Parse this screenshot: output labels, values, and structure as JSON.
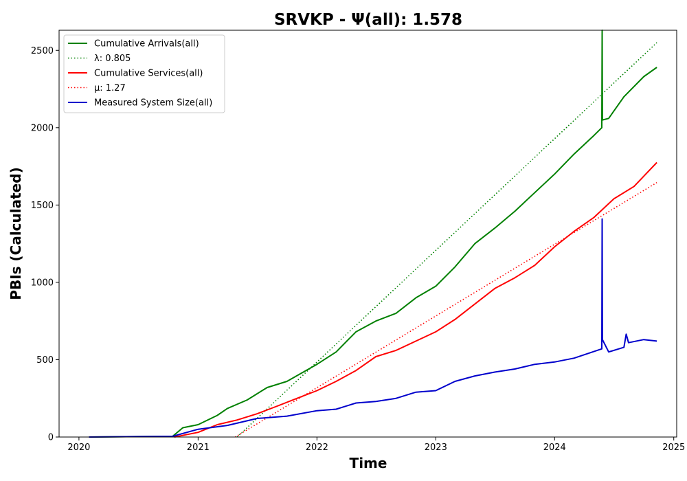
{
  "chart_data": {
    "type": "line",
    "title": "SRVKP -  Ψ(all): 1.578",
    "xlabel": "Time",
    "ylabel": "PBIs (Calculated)",
    "xlim": [
      "2019-11-01",
      "2025-01-10"
    ],
    "ylim": [
      0,
      2630
    ],
    "x_ticks": [
      "2020",
      "2021",
      "2022",
      "2023",
      "2024",
      "2025"
    ],
    "y_ticks": [
      0,
      500,
      1000,
      1500,
      2000,
      2500
    ],
    "grid": false,
    "legend_position": "top-left",
    "legend": [
      {
        "label": "Cumulative Arrivals(all)",
        "color": "#008000",
        "style": "solid"
      },
      {
        "label": "λ: 0.805",
        "color": "#008000",
        "style": "dotted"
      },
      {
        "label": "Cumulative Services(all)",
        "color": "#ff0000",
        "style": "solid"
      },
      {
        "label": "μ: 1.27",
        "color": "#ff0000",
        "style": "dotted"
      },
      {
        "label": "Measured System Size(all)",
        "color": "#0000cc",
        "style": "solid"
      }
    ],
    "series": [
      {
        "name": "Cumulative Arrivals(all)",
        "color": "#008000",
        "style": "solid",
        "points": [
          [
            "2020-02-01",
            0
          ],
          [
            "2020-10-15",
            5
          ],
          [
            "2020-11-15",
            60
          ],
          [
            "2021-01-01",
            80
          ],
          [
            "2021-03-01",
            140
          ],
          [
            "2021-04-01",
            185
          ],
          [
            "2021-06-01",
            240
          ],
          [
            "2021-08-01",
            320
          ],
          [
            "2021-10-01",
            360
          ],
          [
            "2022-01-01",
            470
          ],
          [
            "2022-03-01",
            550
          ],
          [
            "2022-05-01",
            680
          ],
          [
            "2022-07-01",
            750
          ],
          [
            "2022-09-01",
            800
          ],
          [
            "2022-11-01",
            900
          ],
          [
            "2023-01-01",
            975
          ],
          [
            "2023-03-01",
            1100
          ],
          [
            "2023-05-01",
            1250
          ],
          [
            "2023-07-01",
            1350
          ],
          [
            "2023-09-01",
            1460
          ],
          [
            "2023-11-01",
            1580
          ],
          [
            "2024-01-01",
            1700
          ],
          [
            "2024-03-01",
            1830
          ],
          [
            "2024-05-01",
            1950
          ],
          [
            "2024-05-25",
            2000
          ],
          [
            "2024-05-26",
            2630
          ],
          [
            "2024-05-27",
            2050
          ],
          [
            "2024-06-15",
            2060
          ],
          [
            "2024-08-01",
            2200
          ],
          [
            "2024-10-01",
            2330
          ],
          [
            "2024-11-10",
            2390
          ]
        ]
      },
      {
        "name": "λ: 0.805",
        "color": "#008000",
        "style": "dotted",
        "points": [
          [
            "2021-05-01",
            0
          ],
          [
            "2024-11-10",
            2550
          ]
        ]
      },
      {
        "name": "Cumulative Services(all)",
        "color": "#ff0000",
        "style": "solid",
        "points": [
          [
            "2020-10-20",
            0
          ],
          [
            "2021-01-01",
            30
          ],
          [
            "2021-03-01",
            80
          ],
          [
            "2021-05-01",
            110
          ],
          [
            "2021-07-01",
            150
          ],
          [
            "2021-09-01",
            200
          ],
          [
            "2021-11-01",
            250
          ],
          [
            "2022-01-01",
            300
          ],
          [
            "2022-03-01",
            360
          ],
          [
            "2022-05-01",
            430
          ],
          [
            "2022-07-01",
            520
          ],
          [
            "2022-09-01",
            560
          ],
          [
            "2022-11-01",
            620
          ],
          [
            "2023-01-01",
            680
          ],
          [
            "2023-03-01",
            760
          ],
          [
            "2023-05-01",
            860
          ],
          [
            "2023-07-01",
            960
          ],
          [
            "2023-09-01",
            1030
          ],
          [
            "2023-11-01",
            1110
          ],
          [
            "2024-01-01",
            1230
          ],
          [
            "2024-03-01",
            1330
          ],
          [
            "2024-05-01",
            1420
          ],
          [
            "2024-07-01",
            1540
          ],
          [
            "2024-09-01",
            1620
          ],
          [
            "2024-11-10",
            1775
          ]
        ]
      },
      {
        "name": "μ: 1.27",
        "color": "#ff0000",
        "style": "dotted",
        "points": [
          [
            "2021-04-25",
            0
          ],
          [
            "2024-11-10",
            1645
          ]
        ]
      },
      {
        "name": "Measured System Size(all)",
        "color": "#0000cc",
        "style": "solid",
        "points": [
          [
            "2020-02-01",
            0
          ],
          [
            "2020-10-15",
            5
          ],
          [
            "2021-01-01",
            50
          ],
          [
            "2021-04-01",
            75
          ],
          [
            "2021-07-01",
            120
          ],
          [
            "2021-10-01",
            135
          ],
          [
            "2022-01-01",
            170
          ],
          [
            "2022-03-01",
            180
          ],
          [
            "2022-05-01",
            220
          ],
          [
            "2022-07-01",
            230
          ],
          [
            "2022-09-01",
            250
          ],
          [
            "2022-11-01",
            290
          ],
          [
            "2023-01-01",
            300
          ],
          [
            "2023-03-01",
            360
          ],
          [
            "2023-05-01",
            395
          ],
          [
            "2023-07-01",
            420
          ],
          [
            "2023-09-01",
            440
          ],
          [
            "2023-11-01",
            470
          ],
          [
            "2024-01-01",
            485
          ],
          [
            "2024-03-01",
            510
          ],
          [
            "2024-05-25",
            570
          ],
          [
            "2024-05-26",
            1410
          ],
          [
            "2024-05-27",
            630
          ],
          [
            "2024-06-15",
            550
          ],
          [
            "2024-08-01",
            580
          ],
          [
            "2024-08-08",
            665
          ],
          [
            "2024-08-15",
            610
          ],
          [
            "2024-10-01",
            630
          ],
          [
            "2024-11-10",
            620
          ]
        ]
      }
    ]
  }
}
